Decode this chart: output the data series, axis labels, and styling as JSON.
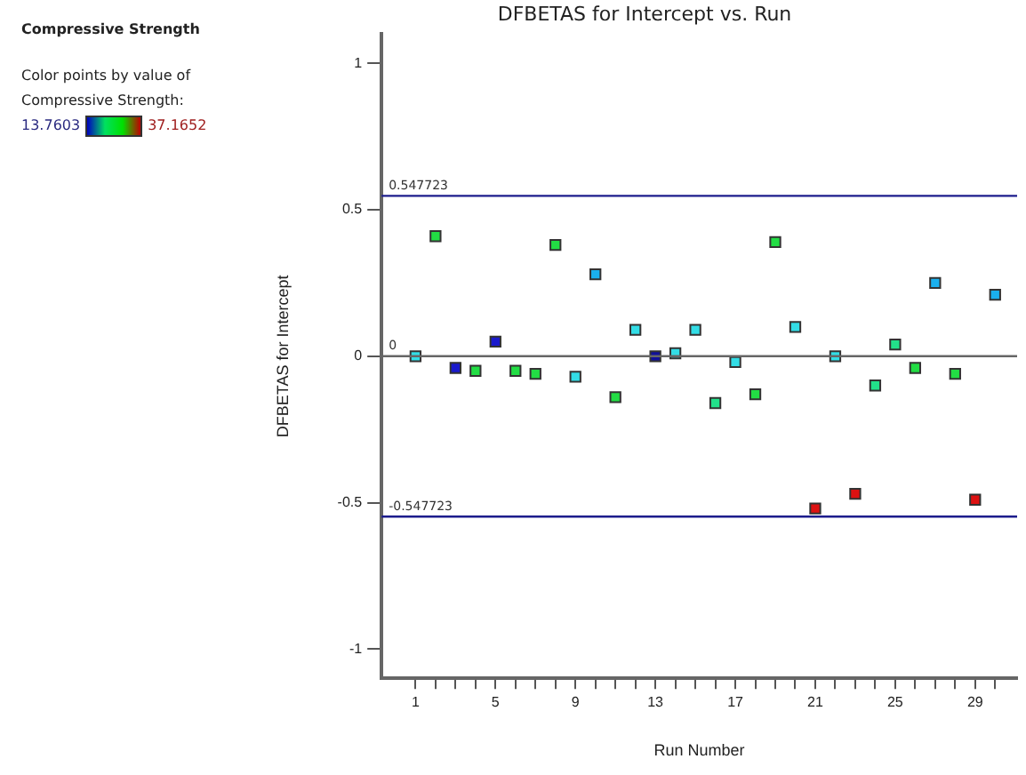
{
  "chart_data": {
    "type": "scatter",
    "title": "DFBETAS for Intercept vs. Run",
    "xlabel": "Run Number",
    "ylabel": "DFBETAS for Intercept",
    "annotations": [
      "Compressive Strength",
      "Color points by value of",
      "Compressive Strength:",
      "13.7603",
      "37.1652"
    ],
    "x": [
      1,
      2,
      3,
      4,
      5,
      6,
      7,
      8,
      9,
      10,
      11,
      12,
      13,
      14,
      15,
      16,
      17,
      18,
      19,
      20,
      21,
      22,
      23,
      24,
      25,
      26,
      27,
      28,
      29,
      30
    ],
    "values": [
      0.0,
      0.41,
      -0.04,
      -0.05,
      0.05,
      -0.05,
      -0.06,
      0.38,
      -0.07,
      0.28,
      -0.14,
      0.09,
      0.0,
      0.01,
      0.09,
      -0.16,
      -0.02,
      -0.13,
      0.39,
      0.1,
      -0.52,
      0.0,
      -0.47,
      -0.1,
      0.04,
      -0.04,
      0.25,
      -0.06,
      -0.49,
      0.21
    ],
    "colors": [
      "#33dde6",
      "#22dd44",
      "#1a1acc",
      "#22dd44",
      "#1a1acc",
      "#22dd44",
      "#22dd44",
      "#22dd44",
      "#33dde6",
      "#1ab0ee",
      "#22dd44",
      "#33dde6",
      "#10109a",
      "#33dde6",
      "#33dde6",
      "#22e08a",
      "#33dde6",
      "#22dd44",
      "#22dd44",
      "#33dde6",
      "#dd1111",
      "#33dde6",
      "#dd1111",
      "#22e08a",
      "#22e08a",
      "#22dd44",
      "#1ab0ee",
      "#22dd44",
      "#dd1111",
      "#1ab0ee"
    ],
    "xlim": [
      -0.7,
      31.1
    ],
    "ylim": [
      -1.1,
      1.1
    ],
    "xticks": [
      1,
      {
        "value": 2,
        "label": null
      },
      {
        "value": 3,
        "label": null
      },
      {
        "value": 4,
        "label": null
      },
      5,
      {
        "value": 6,
        "label": null
      },
      {
        "value": 7,
        "label": null
      },
      {
        "value": 8,
        "label": null
      },
      9,
      {
        "value": 10,
        "label": null
      },
      {
        "value": 11,
        "label": null
      },
      {
        "value": 12,
        "label": null
      },
      13,
      {
        "value": 14,
        "label": null
      },
      {
        "value": 15,
        "label": null
      },
      {
        "value": 16,
        "label": null
      },
      17,
      {
        "value": 18,
        "label": null
      },
      {
        "value": 19,
        "label": null
      },
      {
        "value": 20,
        "label": null
      },
      21,
      {
        "value": 22,
        "label": null
      },
      {
        "value": 23,
        "label": null
      },
      {
        "value": 24,
        "label": null
      },
      25,
      {
        "value": 26,
        "label": null
      },
      {
        "value": 27,
        "label": null
      },
      {
        "value": 28,
        "label": null
      },
      29,
      {
        "value": 30,
        "label": null
      }
    ],
    "yticks": [
      -1,
      -0.5,
      0,
      0.5,
      1
    ],
    "ref_lines": [
      {
        "axis": "y",
        "value": 0.547723,
        "label": "0.547723",
        "color": "#1c1c8c"
      },
      {
        "axis": "y",
        "value": 0,
        "label": "0",
        "color": "#666666"
      },
      {
        "axis": "y",
        "value": -0.547723,
        "label": "-0.547723",
        "color": "#1c1c8c"
      }
    ],
    "grid": false,
    "legend": false,
    "marker": "square"
  }
}
